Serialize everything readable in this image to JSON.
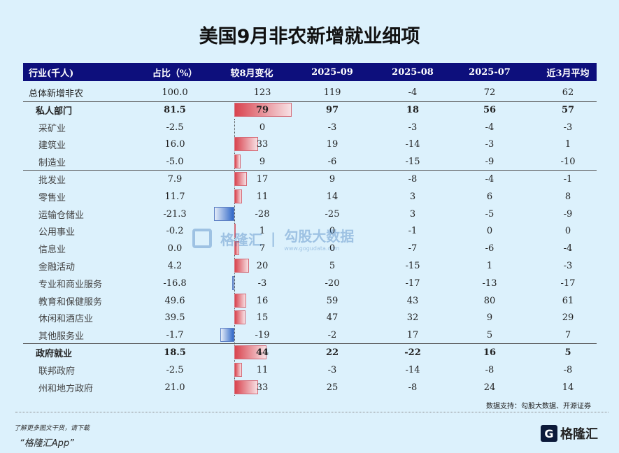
{
  "title": "美国9月非农新增就业细项",
  "headers": [
    "行业(千人)",
    "占比（%）",
    "较8月变化",
    "2025-09",
    "2025-08",
    "2025-07",
    "近3月平均"
  ],
  "rows": [
    {
      "type": "top",
      "name": "总体新增非农",
      "share": "100.0",
      "change": 123,
      "m09": "119",
      "m08": "-4",
      "m07": "72",
      "avg": "62"
    },
    {
      "type": "b",
      "name": "私人部门",
      "share": "81.5",
      "change": 79,
      "m09": "97",
      "m08": "18",
      "m07": "56",
      "avg": "57"
    },
    {
      "type": "sub",
      "name": "采矿业",
      "share": "-2.5",
      "change": 0,
      "m09": "-3",
      "m08": "-3",
      "m07": "-4",
      "avg": "-3"
    },
    {
      "type": "sub",
      "name": "建筑业",
      "share": "16.0",
      "change": 33,
      "m09": "19",
      "m08": "-14",
      "m07": "-3",
      "avg": "1"
    },
    {
      "type": "sub",
      "name": "制造业",
      "share": "-5.0",
      "change": 9,
      "m09": "-6",
      "m08": "-15",
      "m07": "-9",
      "avg": "-10"
    },
    {
      "type": "sub",
      "name": "批发业",
      "share": "7.9",
      "change": 17,
      "m09": "9",
      "m08": "-8",
      "m07": "-4",
      "avg": "-1"
    },
    {
      "type": "sub",
      "name": "零售业",
      "share": "11.7",
      "change": 11,
      "m09": "14",
      "m08": "3",
      "m07": "6",
      "avg": "8"
    },
    {
      "type": "sub",
      "name": "运输仓储业",
      "share": "-21.3",
      "change": -28,
      "m09": "-25",
      "m08": "3",
      "m07": "-5",
      "avg": "-9"
    },
    {
      "type": "sub",
      "name": "公用事业",
      "share": "-0.2",
      "change": 1,
      "m09": "0",
      "m08": "-1",
      "m07": "0",
      "avg": "0"
    },
    {
      "type": "sub",
      "name": "信息业",
      "share": "0.0",
      "change": 7,
      "m09": "0",
      "m08": "-7",
      "m07": "-6",
      "avg": "-4"
    },
    {
      "type": "sub",
      "name": "金融活动",
      "share": "4.2",
      "change": 20,
      "m09": "5",
      "m08": "-15",
      "m07": "1",
      "avg": "-3"
    },
    {
      "type": "sub",
      "name": "专业和商业服务",
      "share": "-16.8",
      "change": -3,
      "m09": "-20",
      "m08": "-17",
      "m07": "-13",
      "avg": "-17"
    },
    {
      "type": "sub",
      "name": "教育和保健服务",
      "share": "49.6",
      "change": 16,
      "m09": "59",
      "m08": "43",
      "m07": "80",
      "avg": "61"
    },
    {
      "type": "sub",
      "name": "休闲和酒店业",
      "share": "39.5",
      "change": 15,
      "m09": "47",
      "m08": "32",
      "m07": "9",
      "avg": "29"
    },
    {
      "type": "sub",
      "name": "其他服务业",
      "share": "-1.7",
      "change": -19,
      "m09": "-2",
      "m08": "17",
      "m07": "5",
      "avg": "7"
    },
    {
      "type": "b",
      "name": "政府就业",
      "share": "18.5",
      "change": 44,
      "m09": "22",
      "m08": "-22",
      "m07": "16",
      "avg": "5"
    },
    {
      "type": "sub",
      "name": "联邦政府",
      "share": "-2.5",
      "change": 11,
      "m09": "-3",
      "m08": "-14",
      "m07": "-8",
      "avg": "-8"
    },
    {
      "type": "sub",
      "name": "州和地方政府",
      "share": "21.0",
      "change": 33,
      "m09": "25",
      "m08": "-8",
      "m07": "24",
      "avg": "14"
    }
  ],
  "source": "数据支持：勾股大数据、开源证券",
  "footer": {
    "line1": "了解更多图文干货，请下载",
    "line2": "“格隆汇App”",
    "logo": "格隆汇"
  },
  "watermark": {
    "brand": "格隆汇",
    "name": "勾股大数据",
    "url": "www.gogudata.com"
  }
}
